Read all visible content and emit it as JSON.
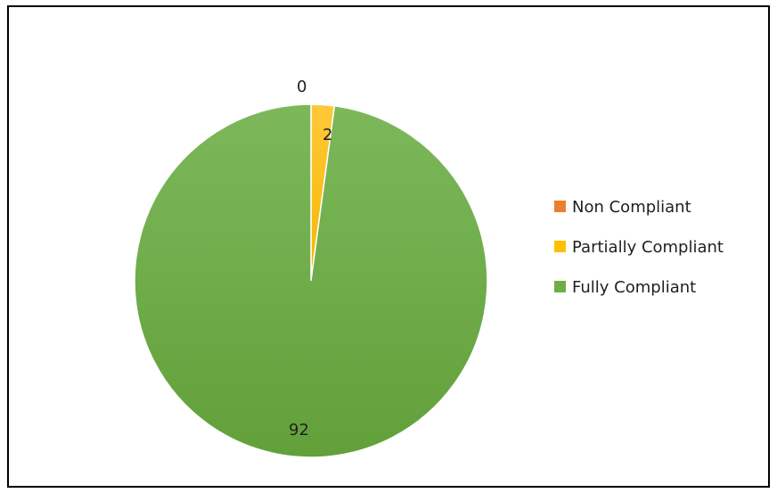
{
  "chart_data": {
    "type": "pie",
    "title": "",
    "categories": [
      "Non Compliant",
      "Partially Compliant",
      "Fully Compliant"
    ],
    "values": [
      0,
      2,
      92
    ],
    "colors": [
      "#ed7d31",
      "#ffc000",
      "#70ad47"
    ],
    "start_angle": "12 o'clock",
    "direction": "clockwise",
    "data_labels": [
      "0",
      "2",
      "92"
    ],
    "legend": {
      "position": "right",
      "entries": [
        "Non Compliant",
        "Partially Compliant",
        "Fully Compliant"
      ]
    }
  }
}
